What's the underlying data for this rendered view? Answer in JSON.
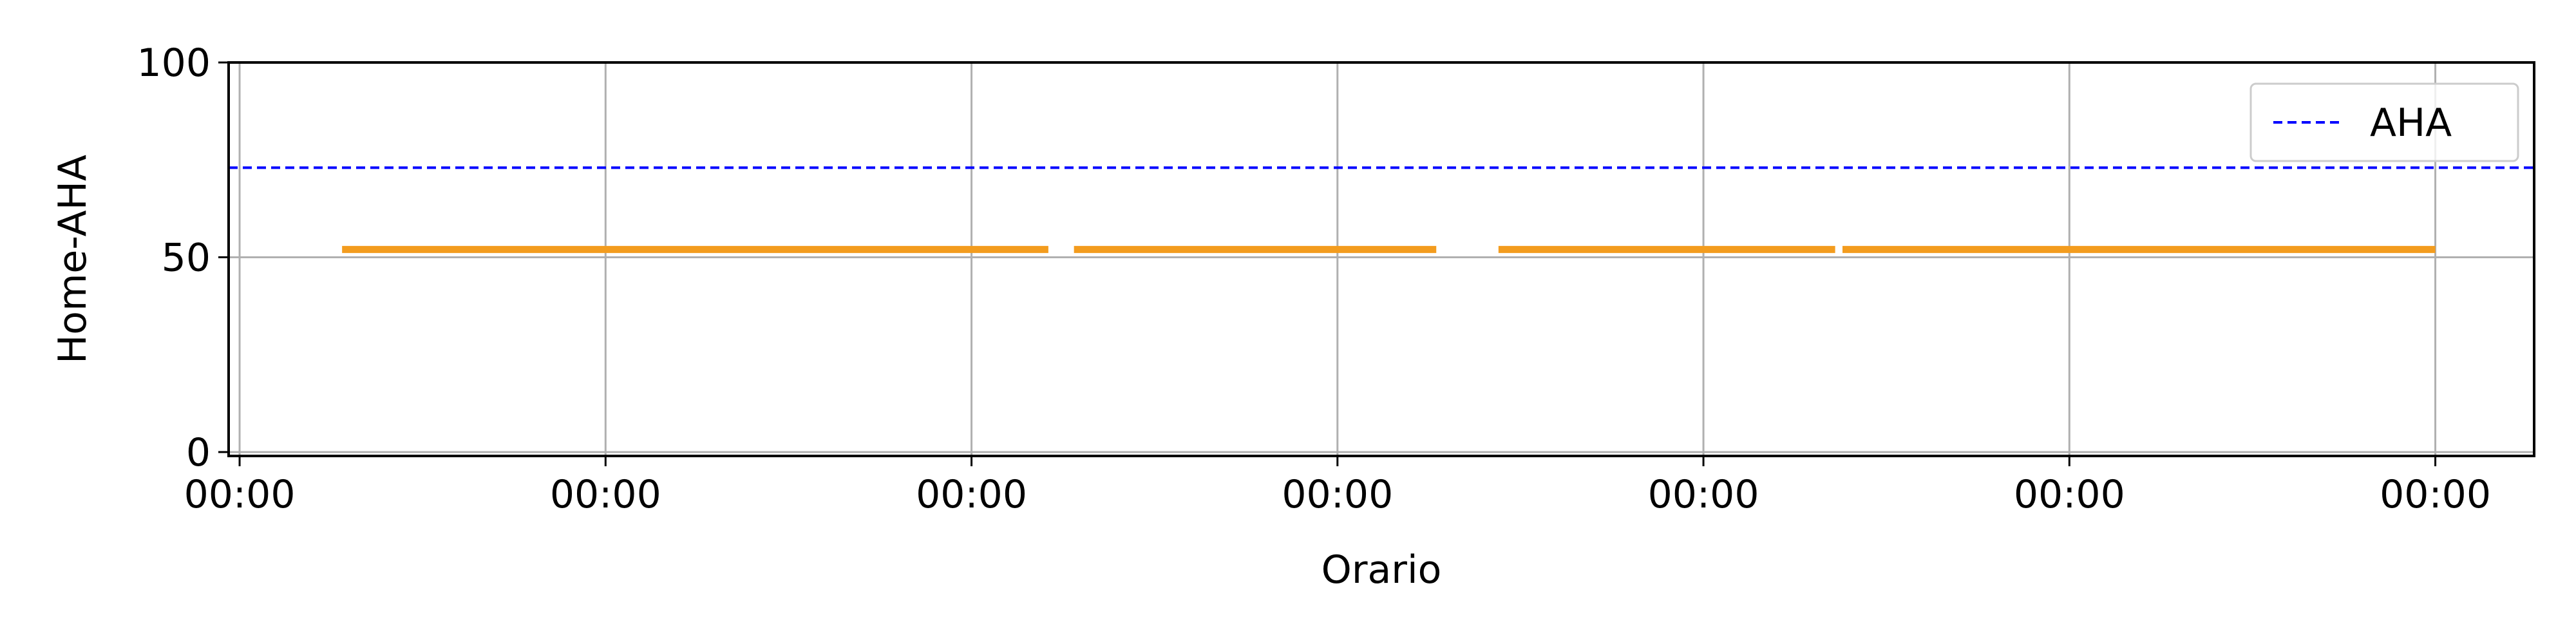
{
  "chart_data": {
    "type": "line",
    "xlabel": "Orario",
    "ylabel": "Home-AHA",
    "x_tick_labels": [
      "00:00",
      "00:00",
      "00:00",
      "00:00",
      "00:00",
      "00:00",
      "00:00"
    ],
    "y_ticks": [
      0,
      50,
      100
    ],
    "xlim": [
      -0.03,
      6.27
    ],
    "ylim": [
      -1,
      100
    ],
    "grid": true,
    "legend_position": "top-right",
    "reference_lines": [
      {
        "name": "AHA",
        "y": 73,
        "style": "dashed",
        "color": "#0000ff"
      }
    ],
    "series": [
      {
        "color": "#f39c1e",
        "segments": [
          {
            "x": [
              0.28,
              2.21
            ],
            "y": [
              52,
              52
            ]
          },
          {
            "x": [
              2.28,
              3.27
            ],
            "y": [
              52,
              52
            ]
          },
          {
            "x": [
              3.44,
              4.36
            ],
            "y": [
              52,
              52
            ]
          },
          {
            "x": [
              4.38,
              6.0
            ],
            "y": [
              52,
              52
            ]
          }
        ]
      }
    ]
  }
}
